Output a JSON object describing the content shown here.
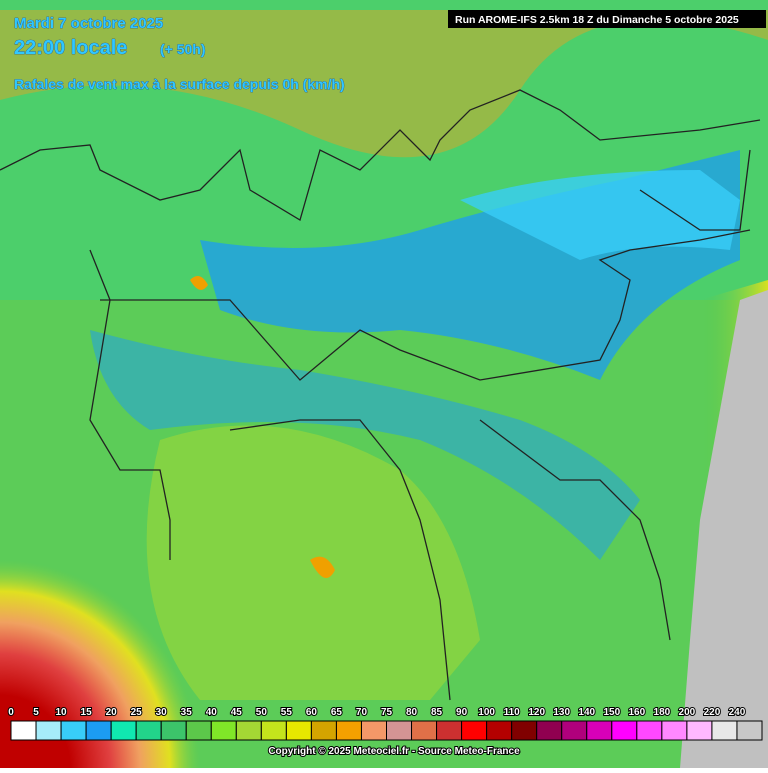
{
  "header": {
    "date": "Mardi 7 octobre 2025",
    "time": "22:00 locale",
    "offset": "(+ 50h)",
    "subtitle": "Rafales de vent max à la surface depuis 0h (km/h)",
    "run": "Run AROME-IFS 2.5km 18 Z du Dimanche 5 octobre 2025"
  },
  "legend": {
    "items": [
      {
        "label": 0,
        "color": "#ffffff"
      },
      {
        "label": 5,
        "color": "#a6ecfa"
      },
      {
        "label": 10,
        "color": "#38cdf8"
      },
      {
        "label": 15,
        "color": "#1c9cf2"
      },
      {
        "label": 20,
        "color": "#10e8b0"
      },
      {
        "label": 25,
        "color": "#22d48a"
      },
      {
        "label": 30,
        "color": "#3cc46a"
      },
      {
        "label": 35,
        "color": "#5cc84a"
      },
      {
        "label": 40,
        "color": "#80e628"
      },
      {
        "label": 45,
        "color": "#a4d834"
      },
      {
        "label": 50,
        "color": "#c4e41c"
      },
      {
        "label": 55,
        "color": "#e6e800"
      },
      {
        "label": 60,
        "color": "#d4a400"
      },
      {
        "label": 65,
        "color": "#f4a000"
      },
      {
        "label": 70,
        "color": "#f49868"
      },
      {
        "label": 75,
        "color": "#d49494"
      },
      {
        "label": 80,
        "color": "#e07048"
      },
      {
        "label": 85,
        "color": "#cc3030"
      },
      {
        "label": 90,
        "color": "#ff0000"
      },
      {
        "label": 100,
        "color": "#b40000"
      },
      {
        "label": 110,
        "color": "#800000"
      },
      {
        "label": 120,
        "color": "#900050"
      },
      {
        "label": 130,
        "color": "#b0007c"
      },
      {
        "label": 140,
        "color": "#d800b8"
      },
      {
        "label": 150,
        "color": "#ff00ff"
      },
      {
        "label": 160,
        "color": "#ff48ff"
      },
      {
        "label": 180,
        "color": "#ff88ff"
      },
      {
        "label": 200,
        "color": "#ffb8ff"
      },
      {
        "label": 220,
        "color": "#e8e8e8"
      },
      {
        "label": 240,
        "color": "#c8c8c8"
      }
    ]
  },
  "footer": "Copyright © 2025 Meteociel.fr - Source Meteo-France"
}
